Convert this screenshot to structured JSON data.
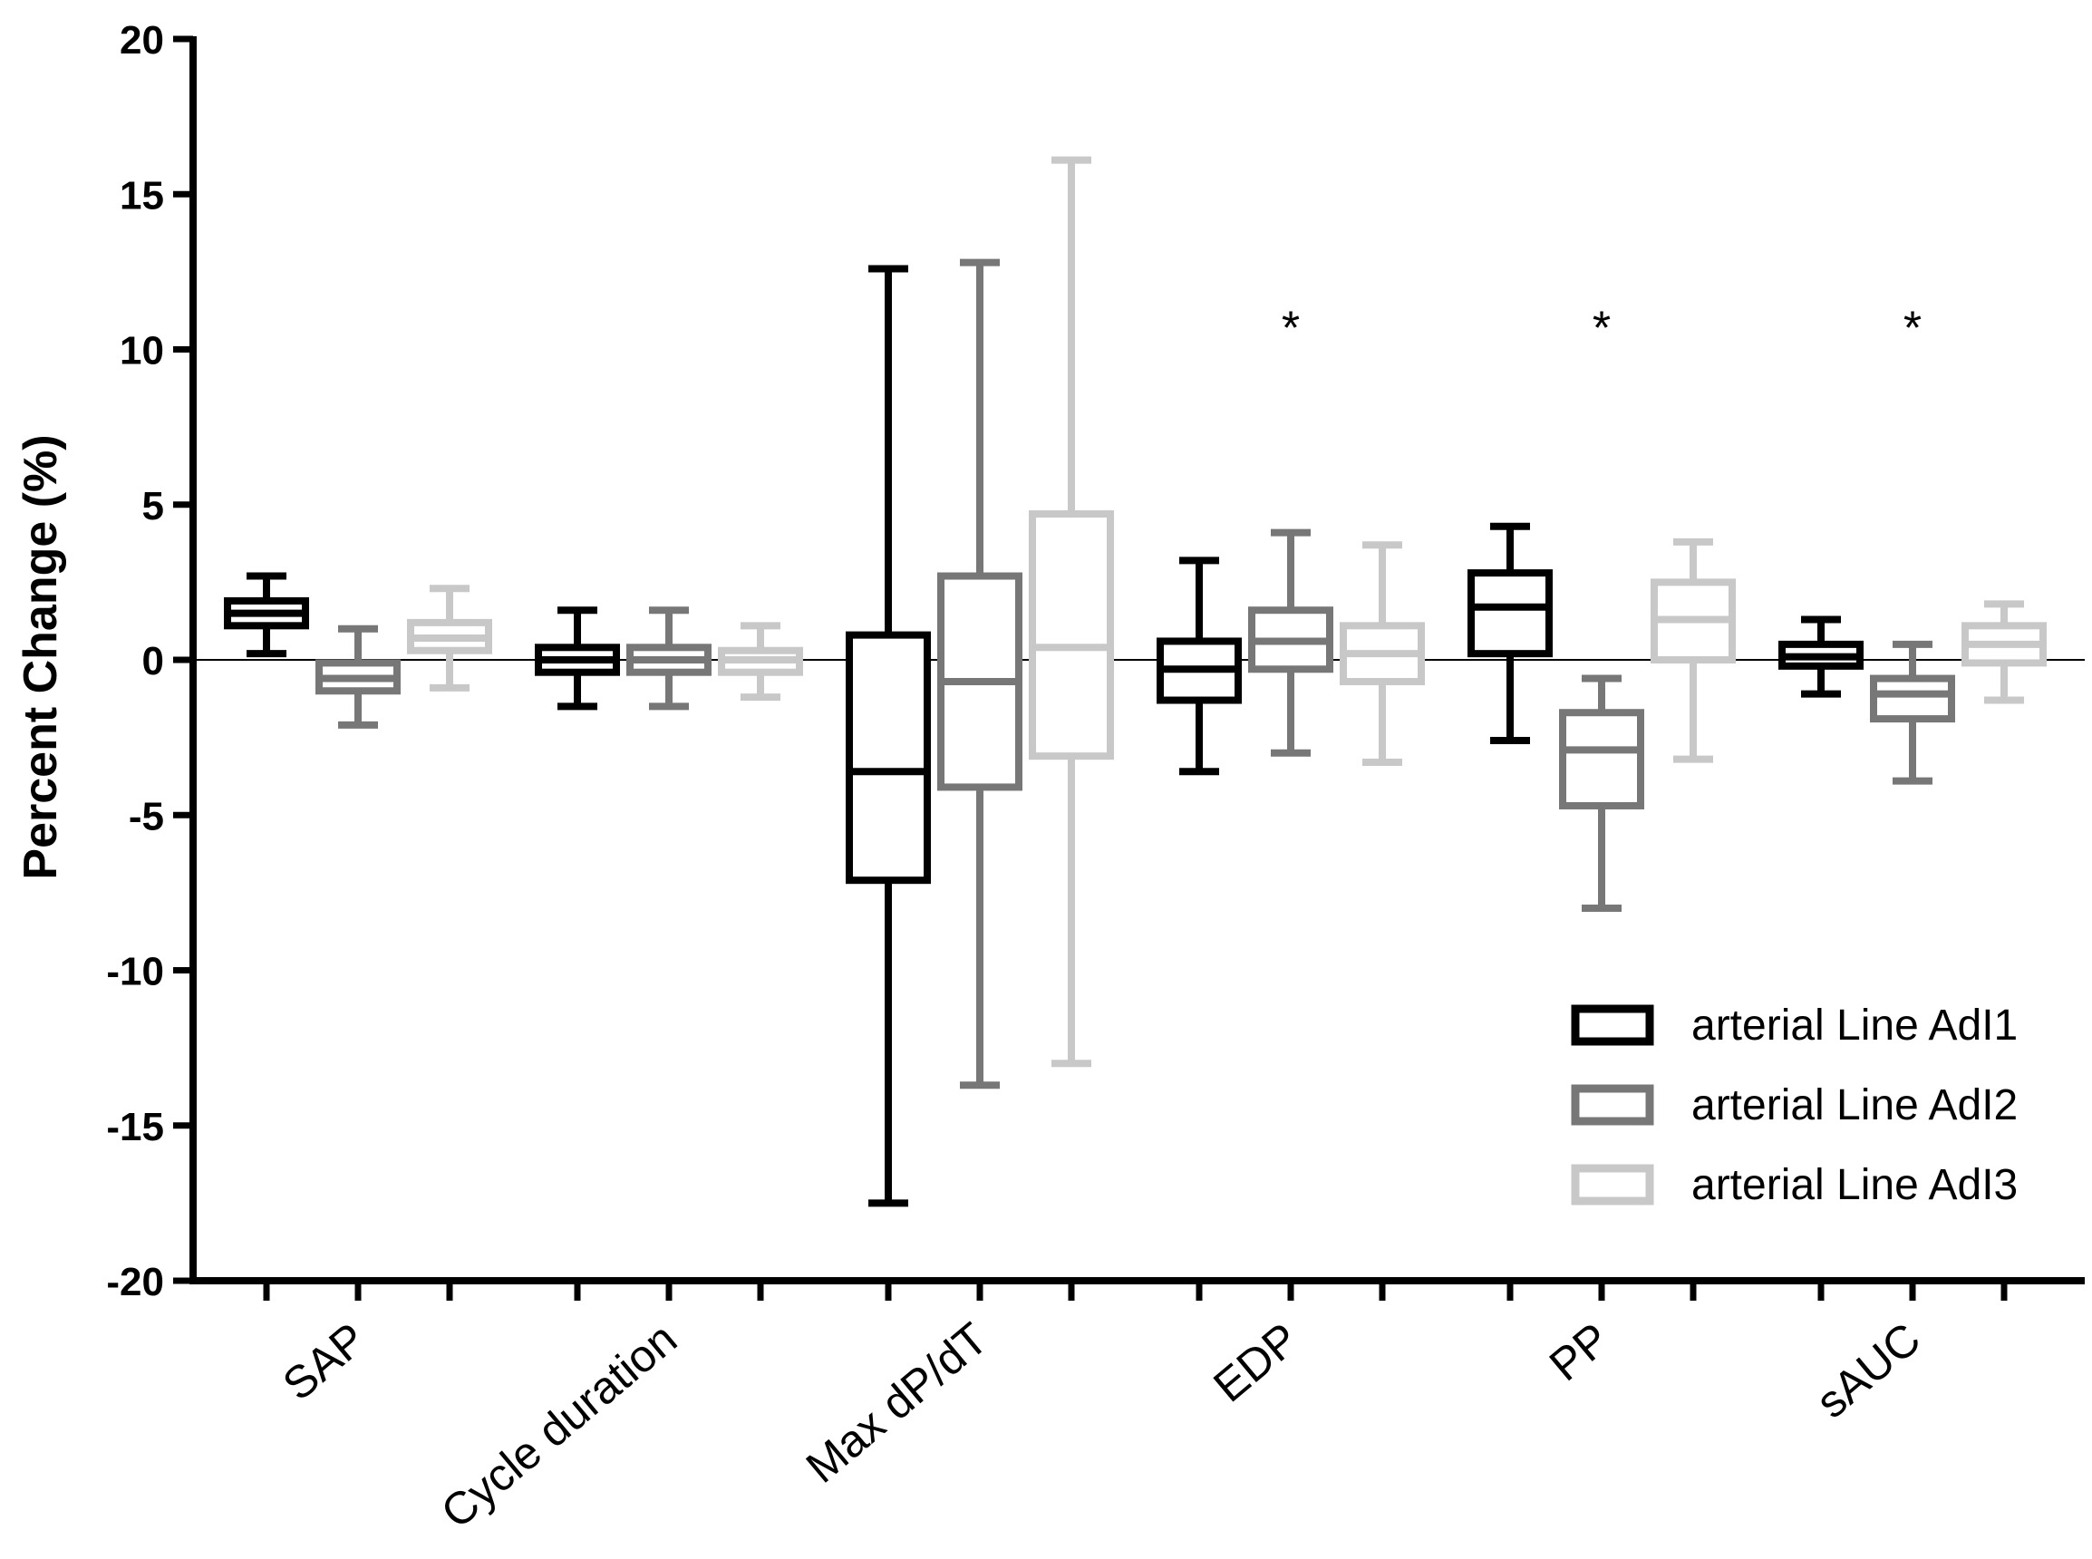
{
  "chart_data": {
    "type": "box",
    "title": "",
    "xlabel": "",
    "ylabel": "Percent Change (%)",
    "ylim": [
      -20,
      20
    ],
    "yticks": [
      -20,
      -15,
      -10,
      -5,
      0,
      5,
      10,
      15,
      20
    ],
    "categories": [
      "SAP",
      "Cycle duration",
      "Max dP/dT",
      "EDP",
      "PP",
      "sAUC"
    ],
    "series": [
      {
        "name": "arterial Line AdI1",
        "color": "#000000",
        "boxes": [
          {
            "min": 0.2,
            "q1": 1.1,
            "median": 1.5,
            "q3": 1.9,
            "max": 2.7
          },
          {
            "min": -1.5,
            "q1": -0.4,
            "median": 0.0,
            "q3": 0.4,
            "max": 1.6
          },
          {
            "min": -17.5,
            "q1": -7.1,
            "median": -3.6,
            "q3": 0.8,
            "max": 12.6
          },
          {
            "min": -3.6,
            "q1": -1.3,
            "median": -0.3,
            "q3": 0.6,
            "max": 3.2
          },
          {
            "min": -2.6,
            "q1": 0.2,
            "median": 1.7,
            "q3": 2.8,
            "max": 4.3
          },
          {
            "min": -1.1,
            "q1": -0.2,
            "median": 0.1,
            "q3": 0.5,
            "max": 1.3
          }
        ]
      },
      {
        "name": "arterial Line AdI2",
        "color": "#777777",
        "boxes": [
          {
            "min": -2.1,
            "q1": -1.0,
            "median": -0.6,
            "q3": -0.1,
            "max": 1.0
          },
          {
            "min": -1.5,
            "q1": -0.4,
            "median": 0.0,
            "q3": 0.4,
            "max": 1.6
          },
          {
            "min": -13.7,
            "q1": -4.1,
            "median": -0.7,
            "q3": 2.7,
            "max": 12.8
          },
          {
            "min": -3.0,
            "q1": -0.3,
            "median": 0.6,
            "q3": 1.6,
            "max": 4.1
          },
          {
            "min": -8.0,
            "q1": -4.7,
            "median": -2.9,
            "q3": -1.7,
            "max": -0.6
          },
          {
            "min": -3.9,
            "q1": -1.9,
            "median": -1.1,
            "q3": -0.6,
            "max": 0.5
          }
        ]
      },
      {
        "name": "arterial Line AdI3",
        "color": "#c8c8c8",
        "boxes": [
          {
            "min": -0.9,
            "q1": 0.3,
            "median": 0.7,
            "q3": 1.2,
            "max": 2.3
          },
          {
            "min": -1.2,
            "q1": -0.4,
            "median": 0.0,
            "q3": 0.3,
            "max": 1.1
          },
          {
            "min": -13.0,
            "q1": -3.1,
            "median": 0.4,
            "q3": 4.7,
            "max": 16.1
          },
          {
            "min": -3.3,
            "q1": -0.7,
            "median": 0.2,
            "q3": 1.1,
            "max": 3.7
          },
          {
            "min": -3.2,
            "q1": 0.0,
            "median": 1.3,
            "q3": 2.5,
            "max": 3.8
          },
          {
            "min": -1.3,
            "q1": -0.1,
            "median": 0.5,
            "q3": 1.1,
            "max": 1.8
          }
        ]
      }
    ],
    "annotations": [
      {
        "text": "*",
        "category": "EDP",
        "value": 10.7
      },
      {
        "text": "*",
        "category": "PP",
        "value": 10.7
      },
      {
        "text": "*",
        "category": "sAUC",
        "value": 10.7
      }
    ],
    "reference_line": 0,
    "legend_position": "bottom-right"
  }
}
